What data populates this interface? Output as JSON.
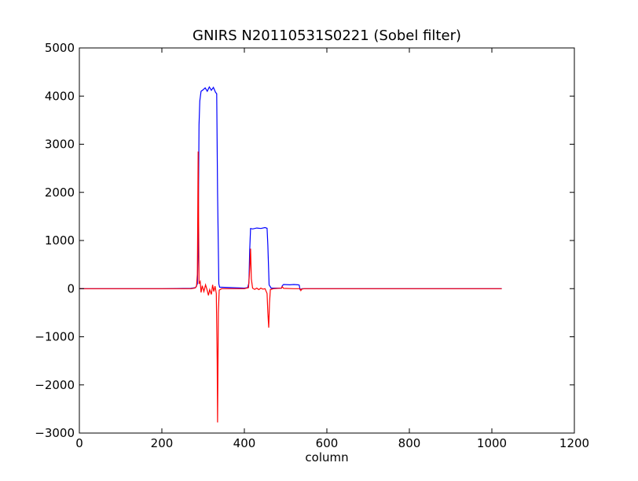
{
  "chart_data": {
    "type": "line",
    "title": "GNIRS N20110531S0221  (Sobel filter)",
    "xlabel": "column",
    "ylabel": "",
    "xlim": [
      0,
      1200
    ],
    "ylim": [
      -3000,
      5000
    ],
    "xticks": [
      "0",
      "200",
      "400",
      "600",
      "800",
      "1000",
      "1200"
    ],
    "yticks": [
      "−3000",
      "−2000",
      "−1000",
      "0",
      "1000",
      "2000",
      "3000",
      "4000",
      "5000"
    ],
    "grid": false,
    "legend": "none",
    "series": [
      {
        "color": "#0000ff",
        "points": [
          [
            0,
            0
          ],
          [
            200,
            0
          ],
          [
            270,
            5
          ],
          [
            282,
            20
          ],
          [
            286,
            100
          ],
          [
            288,
            900
          ],
          [
            290,
            3400
          ],
          [
            292,
            3900
          ],
          [
            295,
            4100
          ],
          [
            300,
            4130
          ],
          [
            305,
            4170
          ],
          [
            310,
            4100
          ],
          [
            315,
            4190
          ],
          [
            320,
            4120
          ],
          [
            325,
            4180
          ],
          [
            330,
            4080
          ],
          [
            333,
            4050
          ],
          [
            335,
            2000
          ],
          [
            338,
            100
          ],
          [
            340,
            30
          ],
          [
            400,
            10
          ],
          [
            408,
            20
          ],
          [
            411,
            120
          ],
          [
            413,
            800
          ],
          [
            415,
            1250
          ],
          [
            420,
            1240
          ],
          [
            430,
            1260
          ],
          [
            440,
            1250
          ],
          [
            450,
            1270
          ],
          [
            455,
            1255
          ],
          [
            457,
            900
          ],
          [
            460,
            80
          ],
          [
            465,
            10
          ],
          [
            490,
            10
          ],
          [
            492,
            60
          ],
          [
            495,
            85
          ],
          [
            510,
            80
          ],
          [
            520,
            85
          ],
          [
            530,
            80
          ],
          [
            533,
            75
          ],
          [
            535,
            -20
          ],
          [
            540,
            0
          ],
          [
            600,
            0
          ],
          [
            800,
            0
          ],
          [
            1024,
            0
          ]
        ]
      },
      {
        "color": "#ff0000",
        "points": [
          [
            0,
            0
          ],
          [
            200,
            0
          ],
          [
            270,
            0
          ],
          [
            280,
            10
          ],
          [
            284,
            50
          ],
          [
            286,
            300
          ],
          [
            288,
            2850
          ],
          [
            290,
            100
          ],
          [
            293,
            150
          ],
          [
            295,
            -80
          ],
          [
            298,
            60
          ],
          [
            302,
            -60
          ],
          [
            306,
            80
          ],
          [
            310,
            -40
          ],
          [
            313,
            -140
          ],
          [
            316,
            -20
          ],
          [
            320,
            -120
          ],
          [
            323,
            80
          ],
          [
            326,
            -60
          ],
          [
            329,
            50
          ],
          [
            332,
            -100
          ],
          [
            334,
            -1500
          ],
          [
            335,
            -2780
          ],
          [
            337,
            -500
          ],
          [
            339,
            -30
          ],
          [
            345,
            0
          ],
          [
            400,
            0
          ],
          [
            410,
            20
          ],
          [
            413,
            400
          ],
          [
            415,
            830
          ],
          [
            417,
            200
          ],
          [
            420,
            10
          ],
          [
            425,
            -15
          ],
          [
            430,
            10
          ],
          [
            435,
            -20
          ],
          [
            440,
            10
          ],
          [
            445,
            -10
          ],
          [
            450,
            0
          ],
          [
            455,
            -100
          ],
          [
            457,
            -500
          ],
          [
            459,
            -810
          ],
          [
            461,
            -300
          ],
          [
            463,
            -20
          ],
          [
            470,
            0
          ],
          [
            490,
            10
          ],
          [
            492,
            40
          ],
          [
            495,
            5
          ],
          [
            520,
            0
          ],
          [
            535,
            0
          ],
          [
            537,
            -40
          ],
          [
            539,
            -10
          ],
          [
            545,
            0
          ],
          [
            700,
            0
          ],
          [
            1024,
            0
          ]
        ]
      }
    ]
  }
}
